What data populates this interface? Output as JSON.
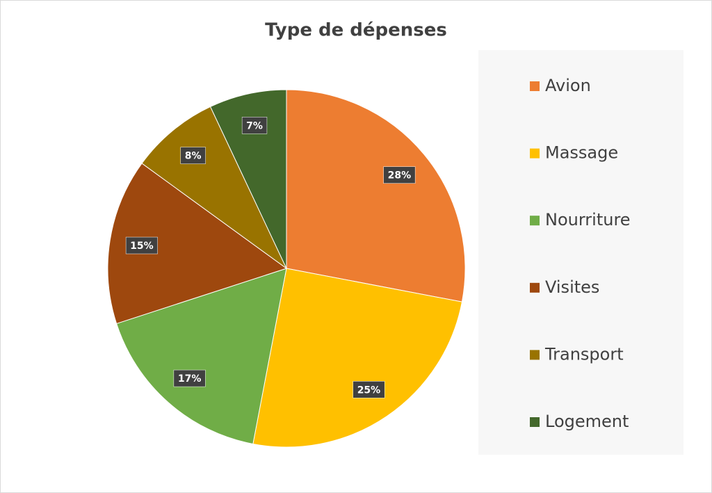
{
  "chart_data": {
    "type": "pie",
    "title": "Type de dépenses",
    "categories": [
      "Avion",
      "Massage",
      "Nourriture",
      "Visites",
      "Transport",
      "Logement"
    ],
    "values": [
      28,
      25,
      17,
      15,
      8,
      7
    ],
    "value_labels": [
      "28%",
      "25%",
      "17%",
      "15%",
      "8%",
      "7%"
    ],
    "colors": [
      "#ed7d31",
      "#ffc000",
      "#70ad47",
      "#9e480e",
      "#997300",
      "#43682b"
    ],
    "legend": "right"
  }
}
